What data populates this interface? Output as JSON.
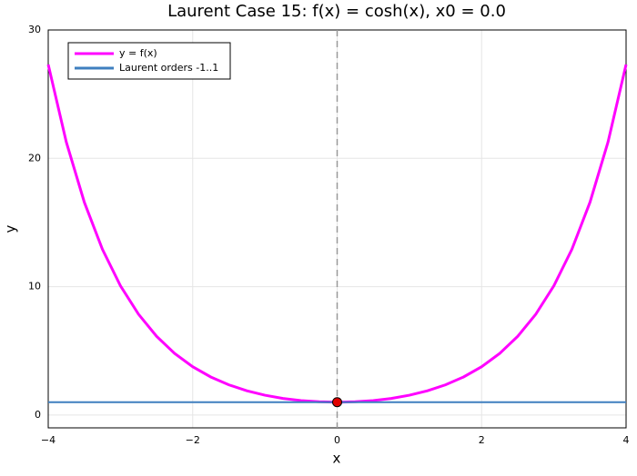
{
  "chart_data": {
    "type": "line",
    "title": "Laurent Case 15: f(x) = cosh(x), x0 = 0.0",
    "x_label": "x",
    "y_label": "y",
    "xlim": [
      -4,
      4
    ],
    "ylim": [
      -1,
      30
    ],
    "xticks": [
      {
        "value": -4,
        "label": "−4"
      },
      {
        "value": -2,
        "label": "−2"
      },
      0,
      2,
      4
    ],
    "yticks": [
      0,
      10,
      20,
      30
    ],
    "grid": true,
    "legend": "top-left",
    "vline": 0,
    "series": [
      {
        "name": "y = f(x)",
        "color": "#ff00ff",
        "x": [
          -4,
          -3.75,
          -3.5,
          -3.25,
          -3,
          -2.75,
          -2.5,
          -2.25,
          -2,
          -1.75,
          -1.5,
          -1.25,
          -1,
          -0.75,
          -0.5,
          -0.25,
          0,
          0.25,
          0.5,
          0.75,
          1,
          1.25,
          1.5,
          1.75,
          2,
          2.25,
          2.5,
          2.75,
          3,
          3.25,
          3.5,
          3.75,
          4
        ],
        "values": [
          27.3082,
          21.2722,
          16.5728,
          12.9146,
          10.0677,
          7.8533,
          6.1323,
          4.7966,
          3.7622,
          2.9642,
          2.3524,
          1.8884,
          1.5431,
          1.2947,
          1.1276,
          1.0314,
          1,
          1.0314,
          1.1276,
          1.2947,
          1.5431,
          1.8884,
          2.3524,
          2.9642,
          3.7622,
          4.7966,
          6.1323,
          7.8533,
          10.0677,
          12.9146,
          16.5728,
          21.2722,
          27.3082
        ]
      },
      {
        "name": "Laurent orders -1..1",
        "color": "#3f7fbf",
        "x": [
          -4,
          4
        ],
        "values": [
          1,
          1
        ]
      }
    ],
    "marker": {
      "x": 0,
      "y": 1,
      "color": "#e00000"
    }
  }
}
